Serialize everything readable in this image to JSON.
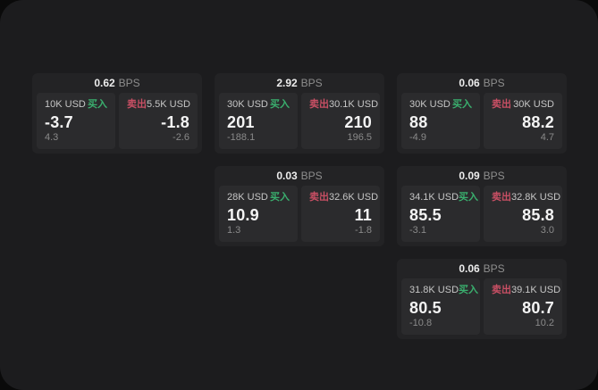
{
  "labels": {
    "buy": "买入",
    "sell": "卖出",
    "bps_unit": "BPS"
  },
  "colors": {
    "buy_accent": "#3aaf6e",
    "sell_accent": "#c84f64"
  },
  "cards": [
    {
      "bps": "0.62",
      "buy_amount": "10K USD",
      "buy_value": "-3.7",
      "buy_sub": "4.3",
      "sell_amount": "5.5K USD",
      "sell_value": "-1.8",
      "sell_sub": "-2.6"
    },
    {
      "bps": "2.92",
      "buy_amount": "30K USD",
      "buy_value": "201",
      "buy_sub": "-188.1",
      "sell_amount": "30.1K USD",
      "sell_value": "210",
      "sell_sub": "196.5"
    },
    {
      "bps": "0.06",
      "buy_amount": "30K USD",
      "buy_value": "88",
      "buy_sub": "-4.9",
      "sell_amount": "30K USD",
      "sell_value": "88.2",
      "sell_sub": "4.7"
    },
    {
      "bps": "0.03",
      "buy_amount": "28K USD",
      "buy_value": "10.9",
      "buy_sub": "1.3",
      "sell_amount": "32.6K USD",
      "sell_value": "11",
      "sell_sub": "-1.8"
    },
    {
      "bps": "0.09",
      "buy_amount": "34.1K USD",
      "buy_value": "85.5",
      "buy_sub": "-3.1",
      "sell_amount": "32.8K USD",
      "sell_value": "85.8",
      "sell_sub": "3.0"
    },
    {
      "bps": "0.06",
      "buy_amount": "31.8K USD",
      "buy_value": "80.5",
      "buy_sub": "-10.8",
      "sell_amount": "39.1K USD",
      "sell_value": "80.7",
      "sell_sub": "10.2"
    }
  ]
}
